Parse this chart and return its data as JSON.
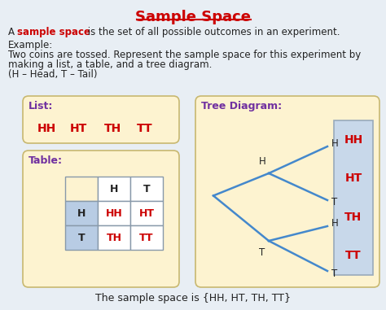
{
  "title": "Sample Space",
  "title_color": "#cc0000",
  "bg_color": "#e8eef4",
  "def_text1": "A ",
  "def_text2": "sample space",
  "def_text3": " is the set of all possible outcomes in an experiment.",
  "example_line1": "Example:",
  "example_line2": "Two coins are tossed. Represent the sample space for this experiment by",
  "example_line3": "making a list, a table, and a tree diagram.",
  "example_line4": "(H – Head, T – Tail)",
  "list_label": "List:",
  "list_items": [
    "HH",
    "HT",
    "TH",
    "TT"
  ],
  "table_label": "Table:",
  "table_cells": [
    [
      "HH",
      "HT"
    ],
    [
      "TH",
      "TT"
    ]
  ],
  "tree_label": "Tree Diagram:",
  "tree_outcomes": [
    "HH",
    "HT",
    "TH",
    "TT"
  ],
  "footer": "The sample space is {HH, HT, TH, TT}",
  "box_bg": "#fdf3d0",
  "tree_box_bg": "#c8d8ea",
  "table_header_bg": "#b8cce4",
  "purple_color": "#7030a0",
  "red_color": "#cc0000",
  "line_color": "#4488cc",
  "text_color": "#222222",
  "border_color": "#c8b870"
}
